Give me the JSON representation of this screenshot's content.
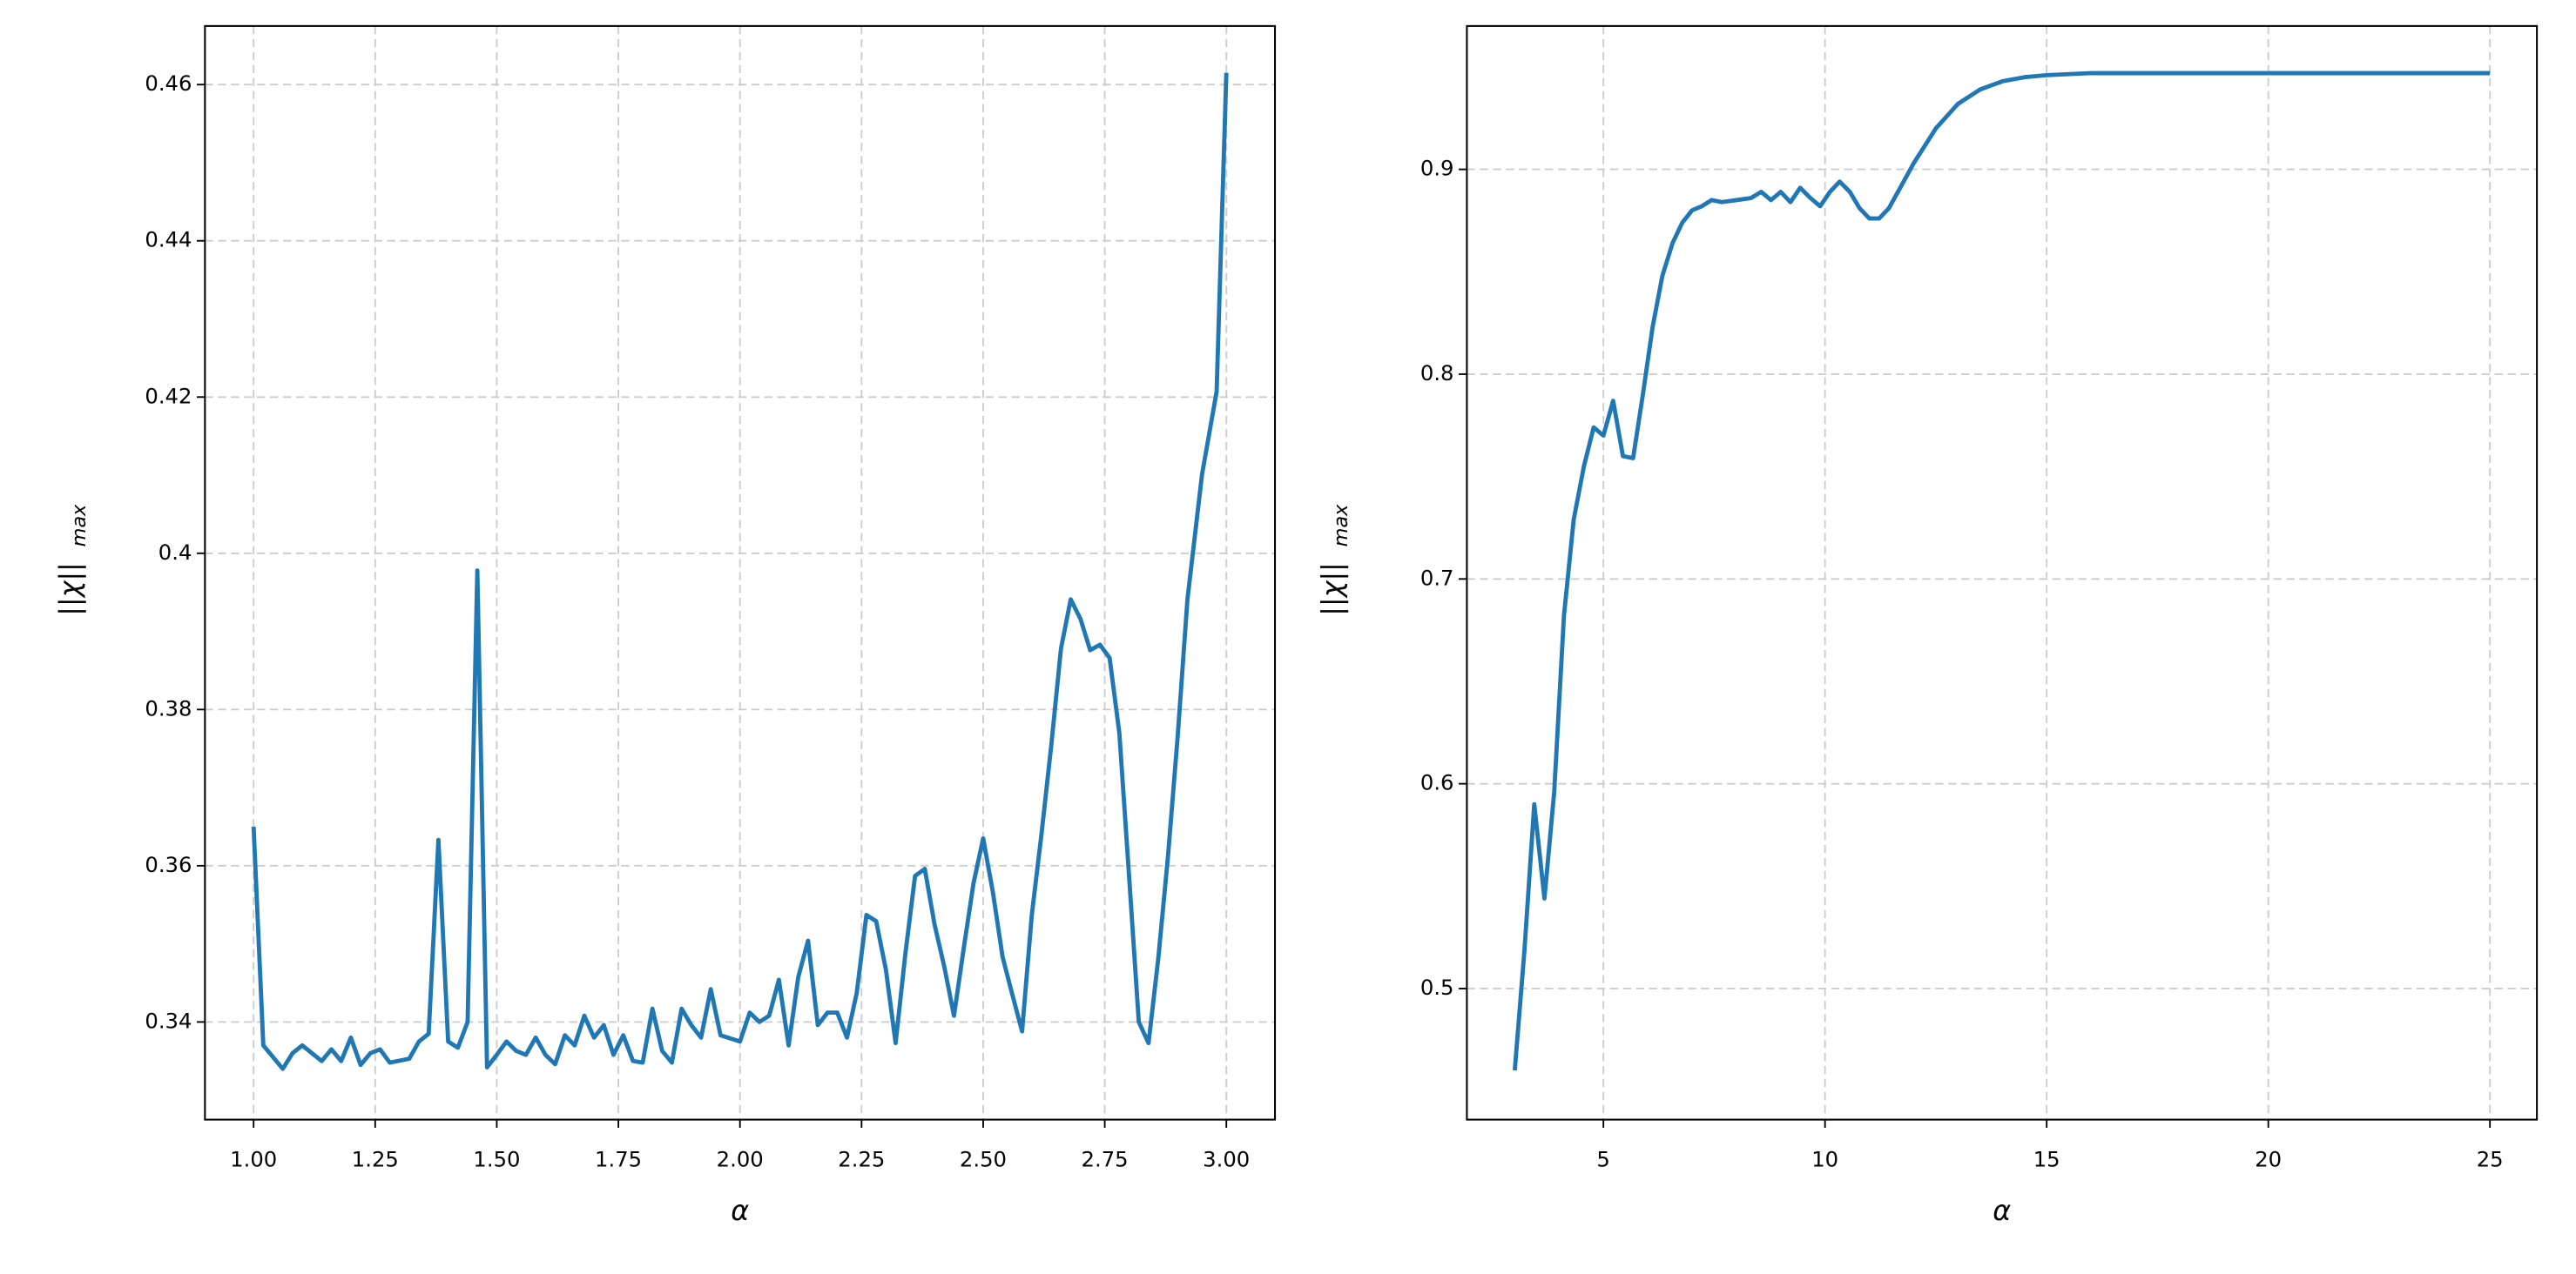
{
  "chart_data": [
    {
      "type": "line",
      "xlabel": "α",
      "ylabel": {
        "main": "||χ||",
        "sub": "max"
      },
      "color": "#1f77b4",
      "grid": true,
      "xlim": [
        0.9,
        3.1
      ],
      "ylim": [
        0.3275,
        0.4675
      ],
      "xticks": [
        {
          "value": 1,
          "label": "1.00"
        },
        {
          "value": 1.25,
          "label": "1.25"
        },
        {
          "value": 1.5,
          "label": "1.50"
        },
        {
          "value": 1.75,
          "label": "1.75"
        },
        {
          "value": 2,
          "label": "2.00"
        },
        {
          "value": 2.25,
          "label": "2.25"
        },
        {
          "value": 2.5,
          "label": "2.50"
        },
        {
          "value": 2.75,
          "label": "2.75"
        },
        {
          "value": 3,
          "label": "3.00"
        }
      ],
      "yticks": [
        0.34,
        0.36,
        0.38,
        0.4,
        0.42,
        0.44,
        0.46
      ],
      "x": [
        1.0,
        1.02,
        1.06,
        1.08,
        1.1,
        1.14,
        1.16,
        1.18,
        1.2,
        1.22,
        1.24,
        1.26,
        1.28,
        1.32,
        1.34,
        1.36,
        1.38,
        1.4,
        1.42,
        1.44,
        1.46,
        1.48,
        1.5,
        1.52,
        1.54,
        1.56,
        1.58,
        1.6,
        1.62,
        1.64,
        1.66,
        1.68,
        1.7,
        1.72,
        1.74,
        1.76,
        1.78,
        1.8,
        1.82,
        1.84,
        1.86,
        1.88,
        1.9,
        1.92,
        1.94,
        1.96,
        2.0,
        2.02,
        2.04,
        2.06,
        2.08,
        2.1,
        2.12,
        2.14,
        2.16,
        2.18,
        2.2,
        2.22,
        2.24,
        2.26,
        2.28,
        2.3,
        2.32,
        2.34,
        2.36,
        2.38,
        2.4,
        2.42,
        2.44,
        2.46,
        2.48,
        2.5,
        2.52,
        2.54,
        2.56,
        2.58,
        2.6,
        2.62,
        2.64,
        2.66,
        2.68,
        2.7,
        2.72,
        2.74,
        2.76,
        2.78,
        2.8,
        2.82,
        2.84,
        2.86,
        2.88,
        2.9,
        2.92,
        2.95,
        2.98,
        3.0
      ],
      "values": [
        0.365,
        0.337,
        0.334,
        0.336,
        0.337,
        0.335,
        0.3365,
        0.335,
        0.338,
        0.3345,
        0.336,
        0.3365,
        0.3348,
        0.3353,
        0.3375,
        0.3385,
        0.3633,
        0.3375,
        0.3367,
        0.34,
        0.3978,
        0.3342,
        0.3358,
        0.3375,
        0.3363,
        0.3358,
        0.338,
        0.3358,
        0.3346,
        0.3383,
        0.337,
        0.3408,
        0.338,
        0.3396,
        0.3358,
        0.3383,
        0.335,
        0.3348,
        0.3417,
        0.3363,
        0.3348,
        0.3417,
        0.3396,
        0.338,
        0.3442,
        0.3383,
        0.3375,
        0.3412,
        0.34,
        0.3408,
        0.3454,
        0.337,
        0.3458,
        0.3504,
        0.3396,
        0.3412,
        0.3412,
        0.338,
        0.3437,
        0.3537,
        0.3529,
        0.3467,
        0.3373,
        0.3487,
        0.3587,
        0.3596,
        0.3525,
        0.3471,
        0.3408,
        0.3494,
        0.3577,
        0.3635,
        0.3566,
        0.3483,
        0.3435,
        0.3388,
        0.3537,
        0.3641,
        0.3754,
        0.3878,
        0.3941,
        0.3916,
        0.3876,
        0.3883,
        0.3866,
        0.377,
        0.3587,
        0.34,
        0.3373,
        0.3481,
        0.3612,
        0.3766,
        0.3941,
        0.4101,
        0.4207,
        0.4615
      ]
    },
    {
      "type": "line",
      "xlabel": "α",
      "ylabel": {
        "main": "||χ||",
        "sub": "max"
      },
      "color": "#1f77b4",
      "grid": true,
      "xlim": [
        1.92,
        26.06
      ],
      "ylim": [
        0.436,
        0.97
      ],
      "xticks": [
        5,
        10,
        15,
        20,
        25
      ],
      "yticks": [
        0.5,
        0.6,
        0.7,
        0.8,
        0.9
      ],
      "x": [
        3.0,
        3.22,
        3.44,
        3.67,
        3.89,
        4.11,
        4.33,
        4.56,
        4.78,
        5.0,
        5.22,
        5.44,
        5.67,
        5.89,
        6.11,
        6.33,
        6.56,
        6.78,
        7.0,
        7.22,
        7.44,
        7.67,
        8.0,
        8.33,
        8.56,
        8.78,
        9.0,
        9.22,
        9.44,
        9.67,
        9.89,
        10.11,
        10.33,
        10.56,
        10.78,
        11.0,
        11.22,
        11.44,
        11.67,
        12.0,
        12.5,
        13.0,
        13.5,
        14.0,
        14.5,
        15.0,
        16.0,
        18.0,
        20.0,
        25.0
      ],
      "values": [
        0.46,
        0.519,
        0.59,
        0.544,
        0.596,
        0.682,
        0.729,
        0.755,
        0.774,
        0.77,
        0.787,
        0.76,
        0.759,
        0.79,
        0.823,
        0.848,
        0.864,
        0.874,
        0.88,
        0.882,
        0.885,
        0.884,
        0.885,
        0.886,
        0.889,
        0.885,
        0.889,
        0.884,
        0.891,
        0.886,
        0.882,
        0.889,
        0.894,
        0.889,
        0.881,
        0.876,
        0.876,
        0.881,
        0.89,
        0.903,
        0.92,
        0.932,
        0.939,
        0.943,
        0.945,
        0.946,
        0.947,
        0.947,
        0.947,
        0.947
      ]
    }
  ]
}
